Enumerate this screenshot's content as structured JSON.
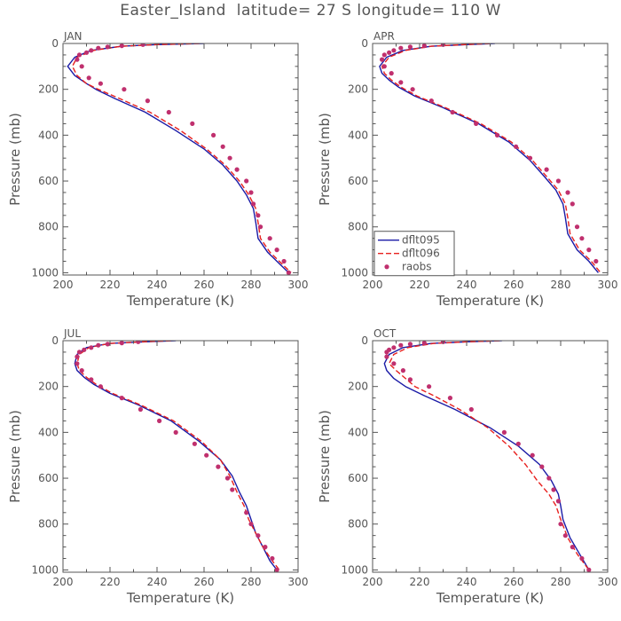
{
  "title": "Easter_Island  latitude= 27 S longitude= 110 W",
  "legend_items": [
    {
      "label": "dflt095",
      "color": "#1a1aa6",
      "style": "solid"
    },
    {
      "label": "dflt096",
      "color": "#e8201e",
      "style": "dashed"
    },
    {
      "label": "raobs",
      "color": "#c0306e",
      "style": "dot"
    }
  ],
  "chart_data": [
    {
      "type": "line",
      "panel_label": "JAN",
      "xlabel": "Temperature (K)",
      "ylabel": "Pressure (mb)",
      "xlim": [
        200,
        300
      ],
      "ylim": [
        1010,
        0
      ],
      "y_inverted": true,
      "xticks": [
        200,
        220,
        240,
        260,
        280,
        300
      ],
      "yticks": [
        0,
        200,
        400,
        600,
        800,
        1000
      ],
      "series": [
        {
          "name": "dflt095",
          "x": [
            260,
            240,
            225,
            212,
            205,
            202,
            205,
            210,
            214,
            222,
            235,
            248,
            260,
            268,
            274,
            278,
            281,
            282,
            283,
            287,
            292,
            296
          ],
          "y": [
            0,
            5,
            12,
            30,
            60,
            100,
            140,
            175,
            200,
            240,
            300,
            380,
            460,
            530,
            600,
            660,
            720,
            780,
            850,
            910,
            960,
            1000
          ]
        },
        {
          "name": "dflt096",
          "x": [
            258,
            240,
            225,
            213,
            206,
            204,
            206,
            210,
            215,
            224,
            237,
            250,
            261,
            269,
            275,
            279,
            282,
            283,
            284,
            288,
            293,
            297
          ],
          "y": [
            0,
            5,
            12,
            30,
            60,
            100,
            140,
            175,
            200,
            240,
            300,
            380,
            460,
            530,
            600,
            660,
            720,
            780,
            850,
            910,
            960,
            1000
          ]
        },
        {
          "name": "raobs",
          "x": [
            234,
            225,
            219,
            215,
            212,
            210,
            207,
            206,
            208,
            211,
            216,
            226,
            236,
            245,
            255,
            264,
            268,
            271,
            274,
            278,
            280,
            281,
            283,
            284,
            288,
            291,
            294,
            296
          ],
          "y": [
            5,
            10,
            15,
            20,
            30,
            40,
            50,
            70,
            100,
            150,
            175,
            200,
            250,
            300,
            350,
            400,
            450,
            500,
            550,
            600,
            650,
            700,
            750,
            800,
            850,
            900,
            950,
            1000
          ]
        }
      ]
    },
    {
      "type": "line",
      "panel_label": "APR",
      "xlabel": "Temperature (K)",
      "ylabel": "Pressure (mb)",
      "xlim": [
        200,
        300
      ],
      "ylim": [
        1010,
        0
      ],
      "y_inverted": true,
      "xticks": [
        200,
        220,
        240,
        260,
        280,
        300
      ],
      "yticks": [
        0,
        200,
        400,
        600,
        800,
        1000
      ],
      "legend": "bottom-left",
      "series": [
        {
          "name": "dflt095",
          "x": [
            252,
            240,
            225,
            213,
            206,
            203,
            204,
            207,
            211,
            218,
            230,
            245,
            258,
            267,
            273,
            278,
            281,
            282,
            283,
            287,
            292,
            296
          ],
          "y": [
            0,
            5,
            12,
            30,
            60,
            100,
            130,
            160,
            190,
            230,
            280,
            350,
            430,
            510,
            580,
            640,
            700,
            760,
            830,
            900,
            950,
            1000
          ]
        },
        {
          "name": "dflt096",
          "x": [
            250,
            239,
            225,
            214,
            207,
            204,
            205,
            208,
            212,
            219,
            231,
            246,
            259,
            268,
            274,
            279,
            282,
            283,
            284,
            288,
            293,
            297
          ],
          "y": [
            0,
            5,
            12,
            30,
            60,
            100,
            130,
            160,
            190,
            230,
            280,
            350,
            430,
            510,
            580,
            640,
            700,
            760,
            830,
            900,
            950,
            1000
          ]
        },
        {
          "name": "raobs",
          "x": [
            230,
            222,
            216,
            212,
            209,
            207,
            205,
            204,
            205,
            208,
            212,
            217,
            225,
            234,
            244,
            253,
            261,
            267,
            274,
            279,
            283,
            285,
            287,
            289,
            292,
            295
          ],
          "y": [
            5,
            10,
            15,
            20,
            30,
            40,
            50,
            70,
            100,
            130,
            170,
            200,
            250,
            300,
            350,
            400,
            450,
            500,
            550,
            600,
            650,
            700,
            800,
            850,
            900,
            950
          ]
        }
      ]
    },
    {
      "type": "line",
      "panel_label": "JUL",
      "xlabel": "Temperature (K)",
      "ylabel": "Pressure (mb)",
      "xlim": [
        200,
        300
      ],
      "ylim": [
        1010,
        0
      ],
      "y_inverted": true,
      "xticks": [
        200,
        220,
        240,
        260,
        280,
        300
      ],
      "yticks": [
        0,
        200,
        400,
        600,
        800,
        1000
      ],
      "series": [
        {
          "name": "dflt095",
          "x": [
            248,
            235,
            220,
            210,
            206,
            205,
            206,
            209,
            213,
            220,
            232,
            246,
            258,
            267,
            272,
            275,
            278,
            280,
            282,
            285,
            288,
            291
          ],
          "y": [
            0,
            5,
            12,
            30,
            60,
            100,
            130,
            160,
            190,
            230,
            280,
            350,
            440,
            520,
            590,
            660,
            720,
            780,
            840,
            900,
            960,
            1000
          ]
        },
        {
          "name": "dflt096",
          "x": [
            246,
            234,
            220,
            211,
            207,
            206,
            207,
            210,
            214,
            221,
            233,
            247,
            259,
            267,
            271,
            274,
            277,
            279,
            282,
            285,
            289,
            292
          ],
          "y": [
            0,
            5,
            12,
            30,
            60,
            100,
            130,
            160,
            190,
            230,
            280,
            350,
            440,
            520,
            590,
            660,
            720,
            780,
            840,
            900,
            960,
            1000
          ]
        },
        {
          "name": "raobs",
          "x": [
            232,
            225,
            219,
            215,
            212,
            209,
            207,
            206,
            206,
            208,
            212,
            216,
            225,
            233,
            241,
            248,
            256,
            261,
            266,
            270,
            272,
            278,
            280,
            283,
            286,
            289,
            291
          ],
          "y": [
            5,
            10,
            15,
            20,
            30,
            40,
            50,
            70,
            100,
            130,
            170,
            200,
            250,
            300,
            350,
            400,
            450,
            500,
            550,
            600,
            650,
            750,
            800,
            850,
            900,
            950,
            1000
          ]
        }
      ]
    },
    {
      "type": "line",
      "panel_label": "OCT",
      "xlabel": "Temperature (K)",
      "ylabel": "Pressure (mb)",
      "xlim": [
        200,
        300
      ],
      "ylim": [
        1010,
        0
      ],
      "y_inverted": true,
      "xticks": [
        200,
        220,
        240,
        260,
        280,
        300
      ],
      "yticks": [
        0,
        200,
        400,
        600,
        800,
        1000
      ],
      "series": [
        {
          "name": "dflt095",
          "x": [
            255,
            240,
            225,
            213,
            207,
            205,
            206,
            209,
            214,
            222,
            235,
            250,
            262,
            271,
            276,
            279,
            280,
            281,
            284,
            288,
            292
          ],
          "y": [
            0,
            5,
            12,
            30,
            60,
            100,
            130,
            165,
            200,
            240,
            300,
            380,
            460,
            540,
            610,
            670,
            720,
            780,
            860,
            930,
            1000
          ]
        },
        {
          "name": "dflt096",
          "x": [
            254,
            240,
            226,
            215,
            209,
            207,
            210,
            214,
            218,
            226,
            237,
            249,
            258,
            265,
            270,
            275,
            278,
            280,
            283,
            287,
            292
          ],
          "y": [
            0,
            5,
            12,
            30,
            60,
            100,
            130,
            165,
            200,
            240,
            300,
            380,
            460,
            540,
            610,
            670,
            720,
            780,
            860,
            930,
            1000
          ]
        },
        {
          "name": "raobs",
          "x": [
            230,
            222,
            216,
            212,
            209,
            207,
            206,
            206,
            209,
            213,
            216,
            224,
            233,
            242,
            256,
            262,
            268,
            272,
            275,
            277,
            279,
            280,
            282,
            285,
            289,
            292
          ],
          "y": [
            5,
            10,
            15,
            20,
            30,
            40,
            50,
            70,
            100,
            130,
            170,
            200,
            250,
            300,
            400,
            450,
            500,
            550,
            600,
            650,
            700,
            800,
            850,
            900,
            950,
            1000
          ]
        }
      ]
    }
  ]
}
